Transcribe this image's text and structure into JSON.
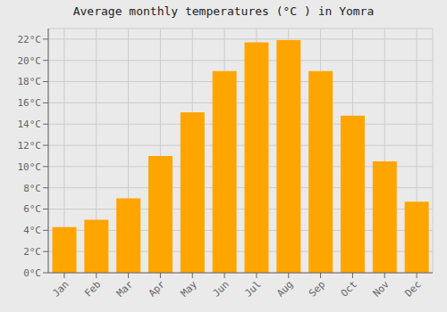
{
  "chart_data": {
    "type": "bar",
    "title": "Average monthly temperatures (°C ) in Yomra",
    "categories": [
      "Jan",
      "Feb",
      "Mar",
      "Apr",
      "May",
      "Jun",
      "Jul",
      "Aug",
      "Sep",
      "Oct",
      "Nov",
      "Dec"
    ],
    "values": [
      4.3,
      5.0,
      7.0,
      11.0,
      15.1,
      19.0,
      21.7,
      21.9,
      19.0,
      14.8,
      10.5,
      6.7
    ],
    "color": "#FFA500",
    "ylim": [
      0,
      23
    ],
    "yticks": [
      {
        "value": 0,
        "label": "0°C"
      },
      {
        "value": 2,
        "label": "2°C"
      },
      {
        "value": 4,
        "label": "4°C"
      },
      {
        "value": 6,
        "label": "6°C"
      },
      {
        "value": 8,
        "label": "8°C"
      },
      {
        "value": 10,
        "label": "10°C"
      },
      {
        "value": 12,
        "label": "12°C"
      },
      {
        "value": 14,
        "label": "14°C"
      },
      {
        "value": 16,
        "label": "16°C"
      },
      {
        "value": 18,
        "label": "18°C"
      },
      {
        "value": 20,
        "label": "20°C"
      },
      {
        "value": 22,
        "label": "22°C"
      }
    ],
    "grid": true
  }
}
